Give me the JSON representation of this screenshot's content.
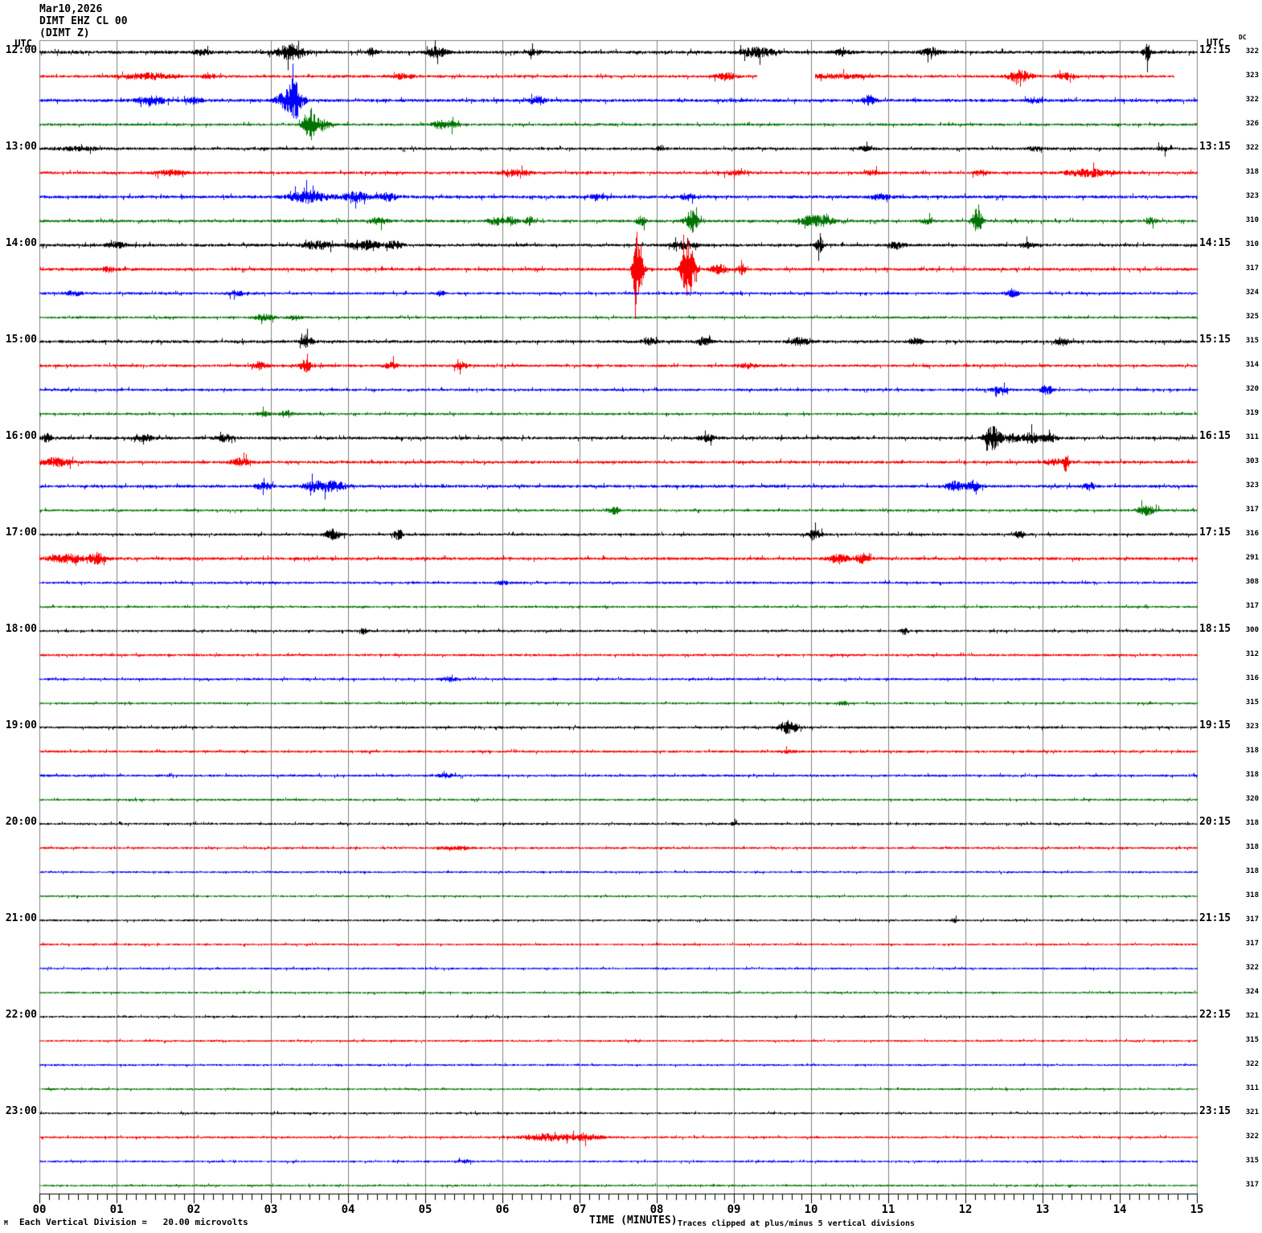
{
  "header": {
    "line1": "Mar10,2026",
    "line2": "DIMT EHZ CL 00",
    "line3": "(DIMT Z)"
  },
  "labels": {
    "utc_left": "UTC",
    "utc_right": "UTC",
    "dc_header": "DC",
    "xlabel": "TIME (MINUTES)",
    "footer_left": "Each Vertical Division =   20.00 microvolts",
    "footer_right": "Traces clipped at plus/minus 5 vertical divisions",
    "corner_glyph": "M"
  },
  "chart_data": {
    "type": "line",
    "title": "Helicorder seismogram DIMT EHZ CL 00 (DIMT Z) Mar10,2026",
    "xlabel": "TIME (MINUTES)",
    "x_range_minutes": [
      0,
      15
    ],
    "minutes_per_row": 15,
    "x_ticks": [
      "00",
      "01",
      "02",
      "03",
      "04",
      "05",
      "06",
      "07",
      "08",
      "09",
      "10",
      "11",
      "12",
      "13",
      "14",
      "15"
    ],
    "grid": true,
    "grid_color": "#808080",
    "colors": {
      "black": "#000000",
      "red": "#fb0000",
      "blue": "#0000fb",
      "green": "#007400"
    },
    "amplitude_note": "event arrays are [center_minute, half_width_minutes, amplitude_px]",
    "rows": [
      {
        "color": "black",
        "dc": 322,
        "noise": 1.6,
        "left_label": "12:00",
        "right_label": "12:15",
        "events": [
          [
            2.1,
            0.1,
            2.5
          ],
          [
            3.25,
            0.18,
            8
          ],
          [
            4.3,
            0.06,
            4
          ],
          [
            5.15,
            0.12,
            5
          ],
          [
            6.4,
            0.08,
            3
          ],
          [
            9.3,
            0.2,
            5
          ],
          [
            10.4,
            0.1,
            3
          ],
          [
            11.55,
            0.12,
            4
          ],
          [
            14.35,
            0.05,
            8
          ]
        ]
      },
      {
        "color": "red",
        "dc": 323,
        "noise": 1.4,
        "events": [
          [
            1.4,
            0.3,
            3
          ],
          [
            2.2,
            0.1,
            2
          ],
          [
            4.7,
            0.15,
            2.5
          ],
          [
            8.9,
            0.12,
            4
          ],
          [
            10.3,
            0.4,
            2
          ],
          [
            12.7,
            0.15,
            6
          ],
          [
            13.3,
            0.12,
            3
          ]
        ],
        "gaps": [
          [
            9.3,
            10.05
          ]
        ],
        "end": 14.7
      },
      {
        "color": "blue",
        "dc": 322,
        "noise": 1.6,
        "events": [
          [
            1.45,
            0.18,
            4
          ],
          [
            2.0,
            0.1,
            3
          ],
          [
            3.15,
            0.1,
            6
          ],
          [
            3.3,
            0.1,
            20
          ],
          [
            6.45,
            0.12,
            3.5
          ],
          [
            10.75,
            0.08,
            5
          ],
          [
            12.9,
            0.1,
            2.5
          ]
        ]
      },
      {
        "color": "green",
        "dc": 326,
        "noise": 1.3,
        "events": [
          [
            3.5,
            0.08,
            18
          ],
          [
            3.68,
            0.08,
            6
          ],
          [
            5.2,
            0.1,
            4
          ],
          [
            5.35,
            0.08,
            3
          ]
        ]
      },
      {
        "color": "black",
        "dc": 322,
        "noise": 1.4,
        "left_label": "13:00",
        "right_label": "13:15",
        "events": [
          [
            0.5,
            0.3,
            1.5
          ],
          [
            8.05,
            0.04,
            3.5
          ],
          [
            10.7,
            0.1,
            2
          ],
          [
            12.9,
            0.1,
            2
          ],
          [
            14.55,
            0.08,
            2.5
          ]
        ]
      },
      {
        "color": "red",
        "dc": 318,
        "noise": 1.4,
        "events": [
          [
            1.7,
            0.2,
            2.5
          ],
          [
            6.15,
            0.2,
            3
          ],
          [
            9.0,
            0.15,
            2
          ],
          [
            10.8,
            0.1,
            2
          ],
          [
            12.2,
            0.1,
            2.5
          ],
          [
            13.6,
            0.3,
            3.5
          ]
        ]
      },
      {
        "color": "blue",
        "dc": 323,
        "noise": 1.6,
        "events": [
          [
            3.5,
            0.25,
            6
          ],
          [
            4.1,
            0.15,
            5
          ],
          [
            4.5,
            0.12,
            4
          ],
          [
            7.2,
            0.1,
            2.5
          ],
          [
            8.4,
            0.08,
            3.5
          ],
          [
            10.9,
            0.12,
            3
          ]
        ]
      },
      {
        "color": "green",
        "dc": 310,
        "noise": 1.4,
        "events": [
          [
            4.4,
            0.12,
            3
          ],
          [
            5.9,
            0.1,
            4
          ],
          [
            6.1,
            0.08,
            4
          ],
          [
            6.35,
            0.06,
            4
          ],
          [
            7.8,
            0.06,
            5
          ],
          [
            8.45,
            0.08,
            11
          ],
          [
            10.0,
            0.15,
            5
          ],
          [
            10.2,
            0.1,
            4
          ],
          [
            11.5,
            0.08,
            2.5
          ],
          [
            12.15,
            0.06,
            14
          ],
          [
            14.4,
            0.08,
            2.5
          ]
        ]
      },
      {
        "color": "black",
        "dc": 310,
        "noise": 1.5,
        "left_label": "14:00",
        "right_label": "14:15",
        "events": [
          [
            1.0,
            0.12,
            3
          ],
          [
            3.6,
            0.18,
            4
          ],
          [
            4.2,
            0.2,
            5
          ],
          [
            4.6,
            0.1,
            3.5
          ],
          [
            8.35,
            0.15,
            3.5
          ],
          [
            10.1,
            0.06,
            8
          ],
          [
            11.1,
            0.1,
            3.5
          ],
          [
            12.8,
            0.1,
            2.5
          ]
        ]
      },
      {
        "color": "red",
        "dc": 317,
        "noise": 1.5,
        "events": [
          [
            0.9,
            0.1,
            2.5
          ],
          [
            7.75,
            0.06,
            42
          ],
          [
            8.4,
            0.08,
            30
          ],
          [
            8.8,
            0.1,
            5
          ],
          [
            9.1,
            0.05,
            5
          ]
        ]
      },
      {
        "color": "blue",
        "dc": 324,
        "noise": 1.3,
        "events": [
          [
            0.45,
            0.1,
            2.5
          ],
          [
            2.55,
            0.12,
            2.5
          ],
          [
            5.2,
            0.04,
            3
          ],
          [
            12.6,
            0.08,
            3.5
          ]
        ]
      },
      {
        "color": "green",
        "dc": 325,
        "noise": 1.2,
        "events": [
          [
            2.9,
            0.12,
            3
          ],
          [
            3.3,
            0.08,
            2.5
          ]
        ]
      },
      {
        "color": "black",
        "dc": 315,
        "noise": 1.5,
        "left_label": "15:00",
        "right_label": "15:15",
        "events": [
          [
            3.45,
            0.08,
            6
          ],
          [
            7.9,
            0.08,
            3.5
          ],
          [
            8.6,
            0.08,
            4
          ],
          [
            9.85,
            0.12,
            3.5
          ],
          [
            11.35,
            0.08,
            3.5
          ],
          [
            13.25,
            0.08,
            4.5
          ]
        ]
      },
      {
        "color": "red",
        "dc": 314,
        "noise": 1.4,
        "events": [
          [
            2.85,
            0.08,
            4
          ],
          [
            3.45,
            0.08,
            6
          ],
          [
            4.55,
            0.08,
            3.5
          ],
          [
            5.45,
            0.08,
            4
          ],
          [
            9.2,
            0.1,
            2.5
          ]
        ]
      },
      {
        "color": "blue",
        "dc": 320,
        "noise": 1.3,
        "events": [
          [
            12.45,
            0.1,
            3.5
          ],
          [
            13.05,
            0.08,
            4.5
          ]
        ]
      },
      {
        "color": "green",
        "dc": 319,
        "noise": 1.2,
        "events": [
          [
            2.9,
            0.08,
            2.5
          ],
          [
            3.2,
            0.08,
            3.5
          ]
        ]
      },
      {
        "color": "black",
        "dc": 311,
        "noise": 1.5,
        "left_label": "16:00",
        "right_label": "16:15",
        "events": [
          [
            0.1,
            0.06,
            4
          ],
          [
            1.35,
            0.12,
            3.5
          ],
          [
            2.4,
            0.1,
            3.5
          ],
          [
            8.65,
            0.1,
            3
          ],
          [
            12.35,
            0.1,
            12
          ],
          [
            12.6,
            0.1,
            4
          ],
          [
            12.85,
            0.12,
            5
          ],
          [
            13.1,
            0.08,
            4
          ]
        ]
      },
      {
        "color": "red",
        "dc": 303,
        "noise": 1.5,
        "events": [
          [
            0.2,
            0.2,
            4
          ],
          [
            2.6,
            0.12,
            3.5
          ],
          [
            13.15,
            0.15,
            2.5
          ],
          [
            13.3,
            0.04,
            8
          ]
        ]
      },
      {
        "color": "blue",
        "dc": 323,
        "noise": 1.5,
        "events": [
          [
            2.9,
            0.1,
            3
          ],
          [
            3.6,
            0.18,
            5
          ],
          [
            3.85,
            0.12,
            4
          ],
          [
            11.85,
            0.12,
            4.5
          ],
          [
            12.1,
            0.08,
            4.5
          ],
          [
            13.6,
            0.08,
            3.5
          ]
        ]
      },
      {
        "color": "green",
        "dc": 317,
        "noise": 1.2,
        "events": [
          [
            7.45,
            0.08,
            3.5
          ],
          [
            14.35,
            0.12,
            4.5
          ]
        ]
      },
      {
        "color": "black",
        "dc": 316,
        "noise": 1.3,
        "left_label": "17:00",
        "right_label": "17:15",
        "events": [
          [
            3.8,
            0.1,
            5
          ],
          [
            4.65,
            0.06,
            5
          ],
          [
            10.05,
            0.08,
            5
          ],
          [
            12.7,
            0.06,
            4.5
          ]
        ]
      },
      {
        "color": "red",
        "dc": 291,
        "noise": 1.5,
        "events": [
          [
            0.35,
            0.22,
            4
          ],
          [
            0.75,
            0.12,
            5
          ],
          [
            10.35,
            0.12,
            5
          ],
          [
            10.65,
            0.1,
            4
          ]
        ]
      },
      {
        "color": "blue",
        "dc": 308,
        "noise": 1.2,
        "events": [
          [
            6.0,
            0.1,
            1.8
          ]
        ]
      },
      {
        "color": "green",
        "dc": 317,
        "noise": 1.1,
        "events": []
      },
      {
        "color": "black",
        "dc": 300,
        "noise": 1.2,
        "left_label": "18:00",
        "right_label": "18:15",
        "events": [
          [
            4.2,
            0.04,
            3
          ],
          [
            11.2,
            0.04,
            3.5
          ]
        ]
      },
      {
        "color": "red",
        "dc": 312,
        "noise": 1.2,
        "events": []
      },
      {
        "color": "blue",
        "dc": 316,
        "noise": 1.2,
        "events": [
          [
            5.3,
            0.1,
            2.2
          ]
        ]
      },
      {
        "color": "green",
        "dc": 315,
        "noise": 1.1,
        "events": [
          [
            10.4,
            0.05,
            2.5
          ]
        ]
      },
      {
        "color": "black",
        "dc": 323,
        "noise": 1.2,
        "left_label": "19:00",
        "right_label": "19:15",
        "events": [
          [
            9.7,
            0.12,
            6.5
          ]
        ]
      },
      {
        "color": "red",
        "dc": 318,
        "noise": 1.2,
        "events": [
          [
            9.7,
            0.1,
            1.6
          ]
        ]
      },
      {
        "color": "blue",
        "dc": 318,
        "noise": 1.2,
        "events": [
          [
            5.25,
            0.1,
            2
          ]
        ]
      },
      {
        "color": "green",
        "dc": 320,
        "noise": 1.1,
        "events": []
      },
      {
        "color": "black",
        "dc": 318,
        "noise": 1.1,
        "left_label": "20:00",
        "right_label": "20:15",
        "events": [
          [
            9.0,
            0.04,
            1.6
          ]
        ]
      },
      {
        "color": "red",
        "dc": 318,
        "noise": 1.1,
        "events": [
          [
            5.4,
            0.2,
            1.4
          ]
        ]
      },
      {
        "color": "blue",
        "dc": 318,
        "noise": 1.0,
        "events": []
      },
      {
        "color": "green",
        "dc": 318,
        "noise": 1.0,
        "events": []
      },
      {
        "color": "black",
        "dc": 317,
        "noise": 1.0,
        "left_label": "21:00",
        "right_label": "21:15",
        "events": [
          [
            11.85,
            0.04,
            2.2
          ]
        ]
      },
      {
        "color": "red",
        "dc": 317,
        "noise": 1.0,
        "events": []
      },
      {
        "color": "blue",
        "dc": 322,
        "noise": 1.0,
        "events": []
      },
      {
        "color": "green",
        "dc": 324,
        "noise": 1.0,
        "events": []
      },
      {
        "color": "black",
        "dc": 321,
        "noise": 1.0,
        "left_label": "22:00",
        "right_label": "22:15",
        "events": []
      },
      {
        "color": "red",
        "dc": 315,
        "noise": 1.0,
        "events": []
      },
      {
        "color": "blue",
        "dc": 322,
        "noise": 1.0,
        "events": []
      },
      {
        "color": "green",
        "dc": 311,
        "noise": 1.0,
        "events": []
      },
      {
        "color": "black",
        "dc": 321,
        "noise": 1.0,
        "left_label": "23:00",
        "right_label": "23:15",
        "events": []
      },
      {
        "color": "red",
        "dc": 322,
        "noise": 1.1,
        "events": [
          [
            6.6,
            0.35,
            3.2
          ],
          [
            7.1,
            0.2,
            2.4
          ]
        ]
      },
      {
        "color": "blue",
        "dc": 315,
        "noise": 1.0,
        "events": [
          [
            5.5,
            0.1,
            1.5
          ]
        ]
      },
      {
        "color": "green",
        "dc": 317,
        "noise": 1.0,
        "events": []
      }
    ]
  }
}
